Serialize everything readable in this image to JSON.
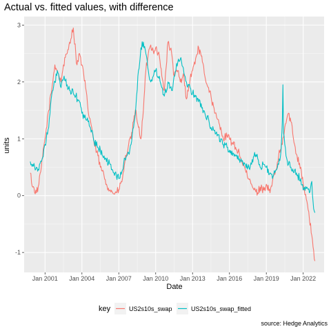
{
  "chart_data": {
    "type": "line",
    "title": "Actual vs. fitted values, with difference",
    "xlabel": "Date",
    "ylabel": "units",
    "caption": "source: Hedge Analytics",
    "legend_title": "key",
    "legend_position": "bottom",
    "grid": true,
    "xlim": [
      1999.3,
      2023.7
    ],
    "ylim": [
      -1.35,
      3.15
    ],
    "x_ticks": [
      {
        "value": 2001.0,
        "label": "Jan 2001"
      },
      {
        "value": 2004.0,
        "label": "Jan 2004"
      },
      {
        "value": 2007.0,
        "label": "Jan 2007"
      },
      {
        "value": 2010.0,
        "label": "Jan 2010"
      },
      {
        "value": 2013.0,
        "label": "Jan 2013"
      },
      {
        "value": 2016.0,
        "label": "Jan 2016"
      },
      {
        "value": 2019.0,
        "label": "Jan 2019"
      },
      {
        "value": 2022.0,
        "label": "Jan 2022"
      }
    ],
    "y_ticks": [
      {
        "value": -1,
        "label": "-1"
      },
      {
        "value": 0,
        "label": "0"
      },
      {
        "value": 1,
        "label": "1"
      },
      {
        "value": 2,
        "label": "2"
      },
      {
        "value": 3,
        "label": "3"
      }
    ],
    "series": [
      {
        "name": "US2s10s_swap",
        "color": "#F8766D",
        "x": [
          1999.8,
          2000.0,
          2000.3,
          2000.5,
          2000.7,
          2001.0,
          2001.3,
          2001.5,
          2001.8,
          2002.0,
          2002.3,
          2002.5,
          2002.8,
          2003.0,
          2003.3,
          2003.5,
          2003.6,
          2003.8,
          2004.0,
          2004.3,
          2004.5,
          2004.8,
          2005.0,
          2005.3,
          2005.5,
          2005.8,
          2006.0,
          2006.3,
          2006.5,
          2006.8,
          2007.0,
          2007.3,
          2007.5,
          2007.8,
          2008.0,
          2008.2,
          2008.4,
          2008.6,
          2008.8,
          2009.0,
          2009.2,
          2009.4,
          2009.6,
          2009.8,
          2010.0,
          2010.3,
          2010.5,
          2010.7,
          2011.0,
          2011.3,
          2011.5,
          2011.8,
          2012.0,
          2012.3,
          2012.5,
          2012.8,
          2013.0,
          2013.3,
          2013.5,
          2013.8,
          2014.0,
          2014.3,
          2014.5,
          2014.8,
          2015.0,
          2015.3,
          2015.5,
          2015.8,
          2016.0,
          2016.3,
          2016.5,
          2016.8,
          2017.0,
          2017.3,
          2017.5,
          2017.8,
          2018.0,
          2018.3,
          2018.5,
          2018.8,
          2019.0,
          2019.3,
          2019.5,
          2019.8,
          2020.0,
          2020.3,
          2020.5,
          2020.8,
          2021.0,
          2021.3,
          2021.5,
          2021.8,
          2022.0,
          2022.3,
          2022.5,
          2022.7,
          2022.8,
          2022.95
        ],
        "y": [
          0.4,
          0.15,
          0.05,
          0.2,
          0.5,
          1.0,
          1.5,
          1.8,
          2.3,
          2.2,
          2.0,
          2.3,
          2.5,
          2.7,
          2.95,
          2.5,
          2.3,
          2.5,
          2.3,
          1.9,
          1.5,
          1.2,
          0.9,
          0.7,
          0.5,
          0.35,
          0.2,
          0.1,
          0.05,
          0.05,
          0.1,
          0.3,
          0.6,
          0.9,
          1.0,
          1.3,
          1.5,
          1.2,
          1.0,
          1.5,
          2.2,
          2.5,
          2.65,
          2.55,
          2.6,
          2.45,
          2.1,
          1.85,
          2.7,
          2.5,
          2.1,
          2.2,
          2.0,
          2.1,
          1.7,
          2.05,
          2.2,
          2.45,
          2.6,
          2.35,
          2.1,
          1.9,
          1.75,
          1.45,
          1.35,
          1.2,
          1.0,
          1.05,
          1.0,
          0.9,
          0.85,
          0.75,
          0.6,
          0.45,
          0.3,
          0.2,
          0.1,
          0.05,
          0.15,
          0.1,
          0.2,
          0.05,
          0.25,
          0.45,
          0.7,
          0.9,
          1.2,
          1.45,
          1.3,
          0.9,
          0.7,
          0.5,
          0.2,
          -0.1,
          -0.4,
          -0.7,
          -0.9,
          -1.15
        ]
      },
      {
        "name": "US2s10s_swap_fitted",
        "color": "#00BFC4",
        "x": [
          1999.8,
          2000.0,
          2000.3,
          2000.5,
          2000.7,
          2001.0,
          2001.3,
          2001.5,
          2001.8,
          2002.0,
          2002.3,
          2002.5,
          2002.8,
          2003.0,
          2003.3,
          2003.5,
          2003.8,
          2004.0,
          2004.3,
          2004.5,
          2004.8,
          2005.0,
          2005.3,
          2005.5,
          2005.8,
          2006.0,
          2006.3,
          2006.5,
          2006.8,
          2007.0,
          2007.3,
          2007.5,
          2007.8,
          2008.0,
          2008.2,
          2008.4,
          2008.6,
          2008.8,
          2009.0,
          2009.2,
          2009.4,
          2009.6,
          2009.8,
          2010.0,
          2010.3,
          2010.5,
          2010.7,
          2011.0,
          2011.3,
          2011.5,
          2011.8,
          2012.0,
          2012.3,
          2012.5,
          2012.8,
          2013.0,
          2013.3,
          2013.5,
          2013.8,
          2014.0,
          2014.3,
          2014.5,
          2014.8,
          2015.0,
          2015.3,
          2015.5,
          2015.8,
          2016.0,
          2016.3,
          2016.5,
          2016.8,
          2017.0,
          2017.3,
          2017.5,
          2017.8,
          2018.0,
          2018.3,
          2018.5,
          2018.8,
          2019.0,
          2019.3,
          2019.5,
          2019.8,
          2020.0,
          2020.2,
          2020.3,
          2020.35,
          2020.4,
          2020.6,
          2020.8,
          2021.0,
          2021.3,
          2021.5,
          2021.8,
          2022.0,
          2022.3,
          2022.5,
          2022.7,
          2022.8,
          2022.95
        ],
        "y": [
          0.6,
          0.55,
          0.5,
          0.45,
          0.6,
          0.9,
          1.2,
          1.7,
          2.0,
          2.2,
          1.9,
          2.05,
          1.95,
          1.85,
          1.8,
          1.75,
          1.65,
          1.45,
          1.35,
          1.3,
          1.15,
          0.95,
          0.85,
          0.8,
          0.7,
          0.6,
          0.55,
          0.45,
          0.35,
          0.3,
          0.45,
          0.65,
          0.75,
          0.9,
          1.2,
          1.6,
          2.2,
          2.6,
          2.7,
          2.5,
          2.2,
          2.0,
          2.1,
          2.2,
          2.1,
          1.9,
          1.75,
          2.0,
          1.85,
          2.1,
          2.35,
          2.4,
          2.15,
          2.0,
          1.9,
          1.8,
          1.75,
          1.65,
          1.55,
          1.45,
          1.35,
          1.2,
          1.15,
          1.05,
          1.0,
          0.9,
          0.85,
          0.8,
          0.75,
          0.7,
          0.65,
          0.6,
          0.55,
          0.5,
          0.55,
          0.7,
          0.65,
          0.5,
          0.55,
          0.5,
          0.4,
          0.3,
          0.45,
          0.55,
          0.8,
          1.3,
          1.95,
          1.1,
          0.7,
          0.55,
          0.5,
          0.45,
          0.35,
          0.3,
          0.1,
          0.15,
          0.05,
          0.25,
          -0.1,
          -0.3
        ]
      }
    ]
  }
}
